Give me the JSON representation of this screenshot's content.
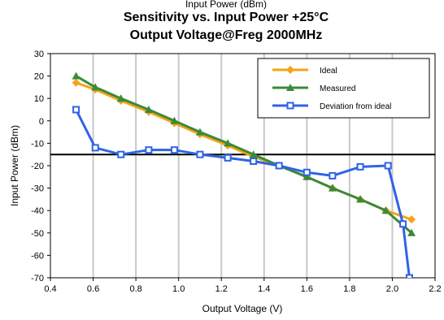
{
  "chart_data": {
    "type": "line",
    "title_clipped": "Input Power (dBm)",
    "title": [
      "Sensitivity vs. Input Power +25°C",
      "Output Voltage@Freg 2000MHz"
    ],
    "xlabel": "Output Voltage (V)",
    "ylabel": "Input Power (dBm)",
    "xlim": [
      0.4,
      2.2
    ],
    "ylim": [
      -70,
      30
    ],
    "xticks": [
      "0.4",
      "0.6",
      "0.8",
      "1.0",
      "1.2",
      "1.4",
      "1.6",
      "1.8",
      "2.0",
      "2.2"
    ],
    "yticks": [
      "30",
      "20",
      "10",
      "0",
      "-10",
      "-20",
      "-30",
      "-40",
      "-50",
      "-60",
      "-70"
    ],
    "vertical_gridlines": true,
    "reference_line_y": -15,
    "legend_position": "top-right",
    "series": [
      {
        "name": "Ideal",
        "color": "#f5a318",
        "marker": "diamond",
        "x": [
          0.52,
          0.61,
          0.73,
          0.86,
          0.98,
          1.1,
          1.23,
          1.35,
          1.47,
          1.6,
          1.72,
          1.85,
          1.97,
          2.09
        ],
        "y": [
          17,
          14,
          9,
          4,
          -1,
          -6,
          -11,
          -16,
          -20,
          -25,
          -30,
          -35,
          -40,
          -44
        ]
      },
      {
        "name": "Measured",
        "color": "#3a8a3a",
        "marker": "triangle",
        "x": [
          0.52,
          0.61,
          0.73,
          0.86,
          0.98,
          1.1,
          1.23,
          1.35,
          1.47,
          1.6,
          1.72,
          1.85,
          1.97,
          2.09
        ],
        "y": [
          20,
          15,
          10,
          5,
          0,
          -5,
          -10,
          -15,
          -20,
          -25,
          -30,
          -35,
          -40,
          -50
        ]
      },
      {
        "name": "Deviation from ideal",
        "color": "#2f63e6",
        "marker": "square",
        "x": [
          0.52,
          0.61,
          0.73,
          0.86,
          0.98,
          1.1,
          1.23,
          1.35,
          1.47,
          1.6,
          1.72,
          1.85,
          1.98,
          2.05,
          2.08
        ],
        "y": [
          5,
          -12,
          -15,
          -13,
          -13,
          -15,
          -16.5,
          -18,
          -20,
          -23,
          -24.5,
          -20.5,
          -20,
          -46,
          -70
        ]
      }
    ]
  }
}
